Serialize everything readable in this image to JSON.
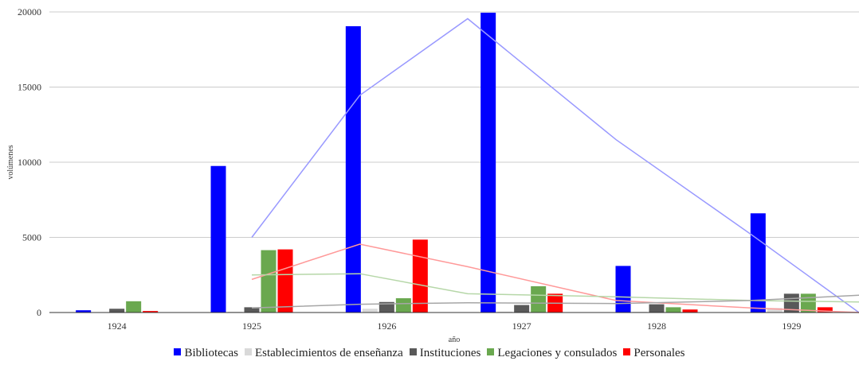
{
  "chart_data": {
    "type": "bar",
    "title": "",
    "xlabel": "año",
    "ylabel": "volúmenes",
    "ylim": [
      0,
      20000
    ],
    "yticks": [
      "0",
      "5000",
      "10000",
      "15000",
      "20000"
    ],
    "categories": [
      "1924",
      "1925",
      "1926",
      "1927",
      "1928",
      "1929"
    ],
    "grid": true,
    "legend_position": "bottom",
    "series": [
      {
        "name": "Bibliotecas",
        "color": "#0000ff",
        "values": [
          150,
          9750,
          19050,
          19950,
          3100,
          6600
        ]
      },
      {
        "name": "Establecimientos de enseñanza",
        "color": "#d9d9d9",
        "values": [
          0,
          50,
          250,
          60,
          50,
          300
        ]
      },
      {
        "name": "Instituciones",
        "color": "#595959",
        "values": [
          250,
          350,
          700,
          500,
          550,
          1250
        ]
      },
      {
        "name": "Legaciones y consulados",
        "color": "#6aa84f",
        "values": [
          750,
          4150,
          950,
          1750,
          350,
          1250
        ]
      },
      {
        "name": "Personales",
        "color": "#ff0000",
        "values": [
          100,
          4200,
          4850,
          1250,
          200,
          350
        ]
      }
    ],
    "trendlines": [
      {
        "series": "Bibliotecas",
        "color": "#9999ff",
        "x": [
          1.5,
          2.3,
          3.1,
          4.2,
          5.2,
          6.0
        ],
        "y": [
          5000,
          14450,
          19550,
          11500,
          5200,
          0
        ]
      },
      {
        "series": "Personales",
        "color": "#ff9999",
        "x": [
          1.5,
          2.3,
          3.1,
          4.2,
          5.2,
          6.0
        ],
        "y": [
          2200,
          4550,
          3050,
          800,
          300,
          0
        ]
      },
      {
        "series": "Legaciones y consulados",
        "color": "#b6d7a8",
        "x": [
          1.5,
          2.3,
          3.1,
          4.2,
          5.2,
          6.0
        ],
        "y": [
          2500,
          2580,
          1250,
          1050,
          800,
          700
        ]
      },
      {
        "series": "Instituciones",
        "color": "#a6a6a6",
        "x": [
          1.5,
          2.3,
          3.1,
          4.2,
          5.2,
          6.0
        ],
        "y": [
          300,
          550,
          650,
          600,
          800,
          1150
        ]
      }
    ]
  }
}
